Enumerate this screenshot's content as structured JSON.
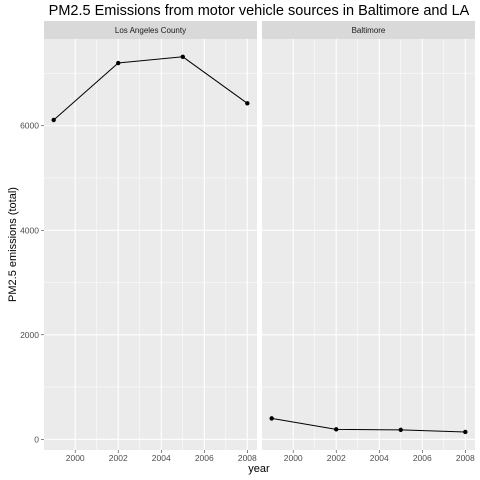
{
  "chart_data": {
    "type": "line",
    "title": "PM2.5 Emissions from motor vehicle sources in Baltimore and LA",
    "xlabel": "year",
    "ylabel": "PM2.5 emissions (total)",
    "x_ticks": [
      2000,
      2002,
      2004,
      2006,
      2008
    ],
    "y_ticks": [
      0,
      2000,
      4000,
      6000
    ],
    "xlim": [
      1998.55,
      2008.45
    ],
    "ylim": [
      -205,
      7660
    ],
    "grid": true,
    "background": "#ebebeb",
    "strip_background": "#d9d9d9",
    "line_color": "#000000",
    "facets": [
      {
        "label": "Los Angeles County",
        "x": [
          1999,
          2002,
          2005,
          2008
        ],
        "y": [
          6110,
          7200,
          7320,
          6430
        ]
      },
      {
        "label": "Baltimore",
        "x": [
          1999,
          2002,
          2005,
          2008
        ],
        "y": [
          400,
          190,
          180,
          140
        ]
      }
    ]
  }
}
